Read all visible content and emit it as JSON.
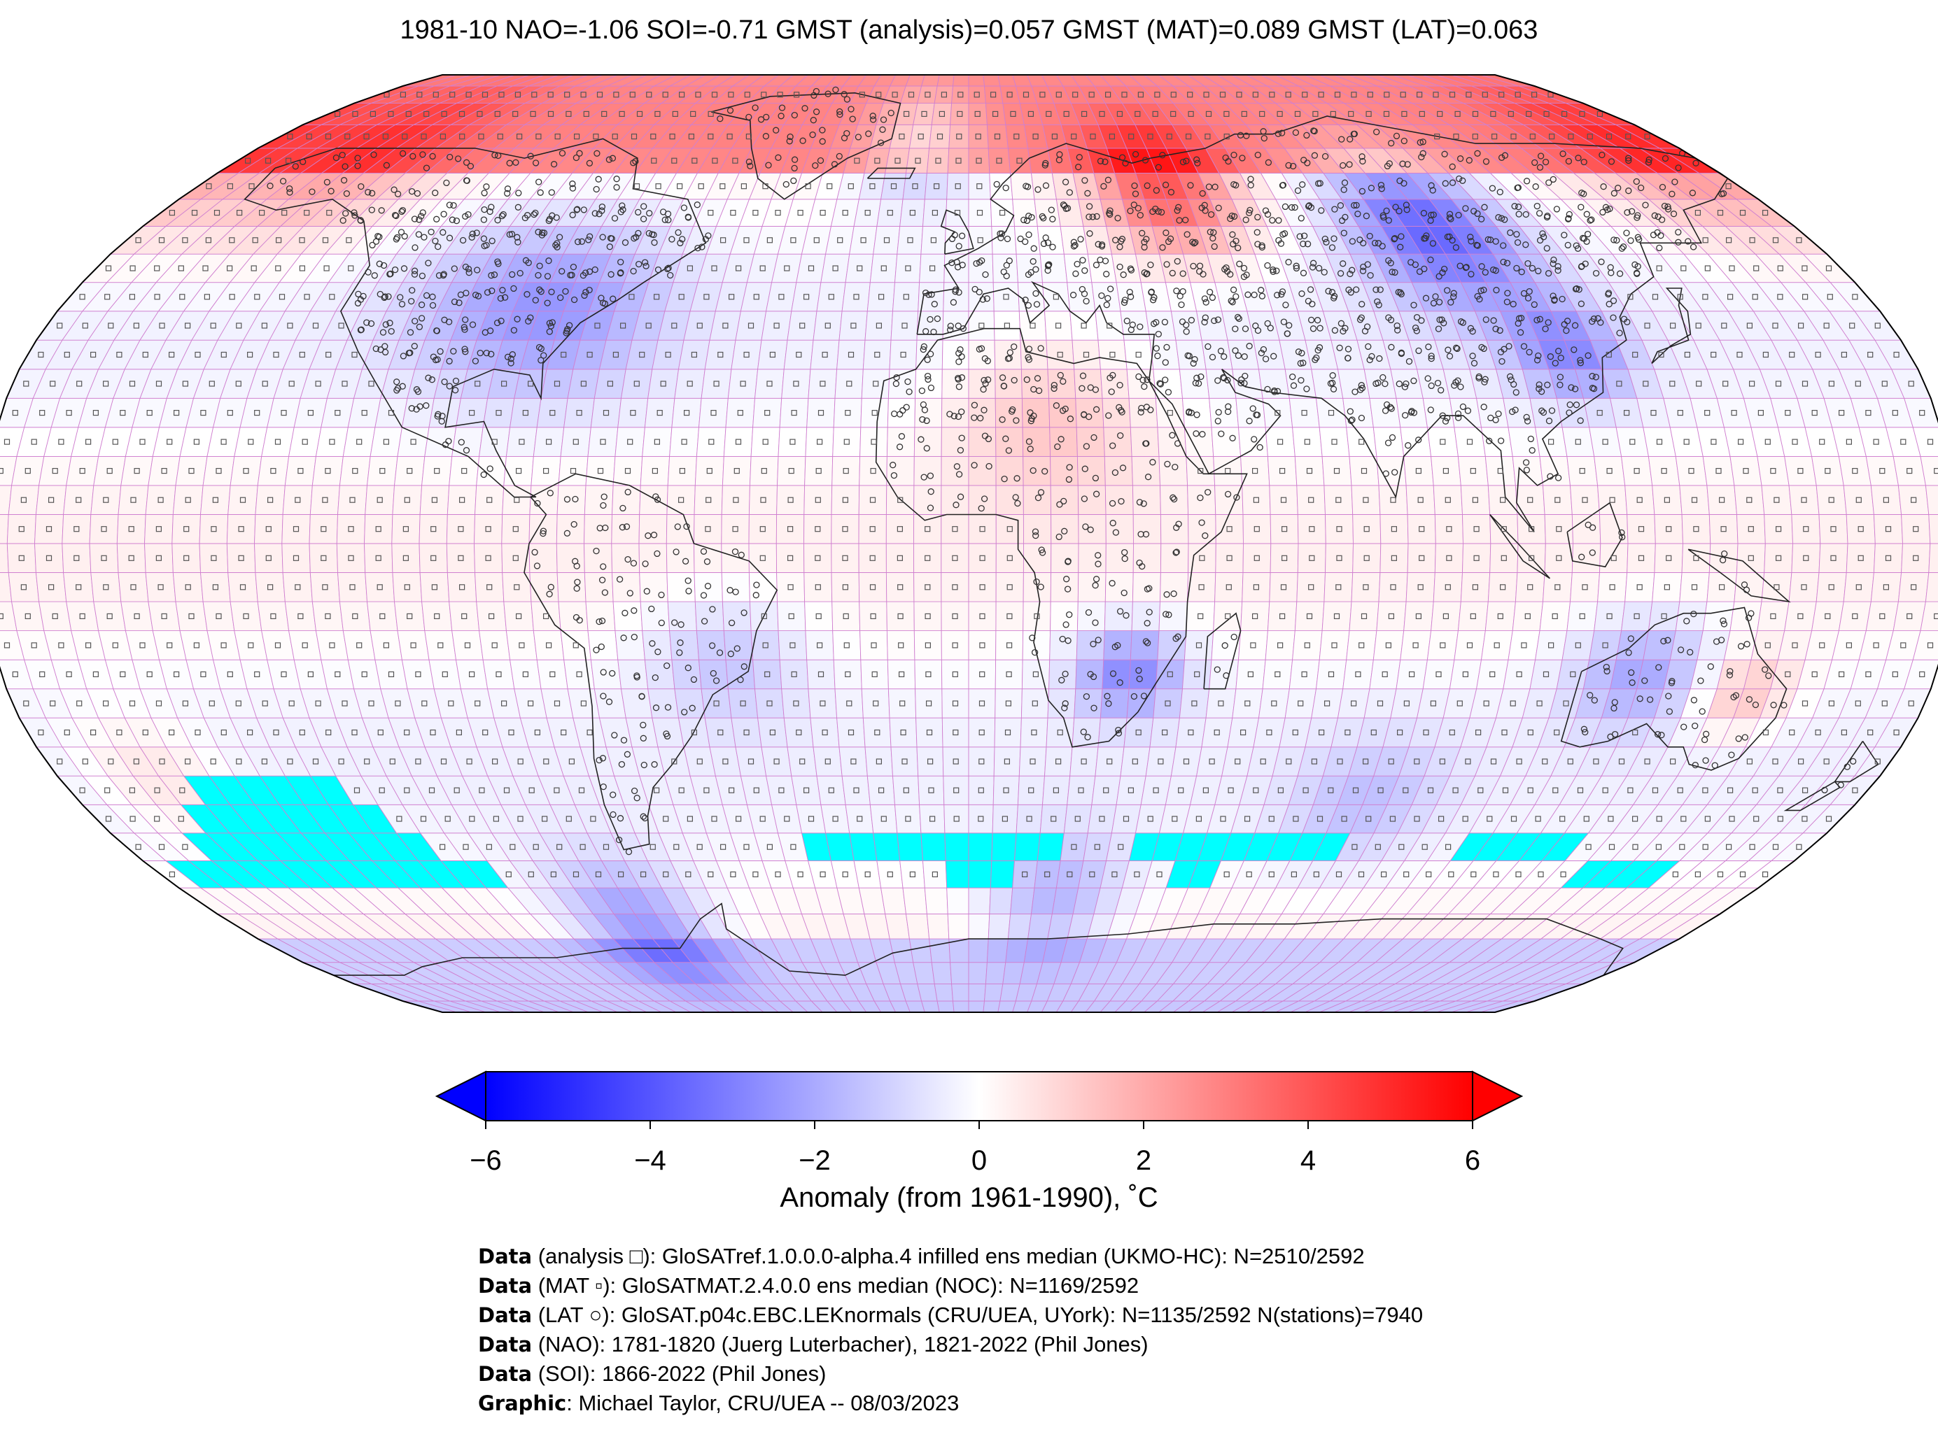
{
  "title": "1981-10 NAO=-1.06 SOI=-0.71 GMST (analysis)=0.057 GMST (MAT)=0.089 GMST (LAT)=0.063",
  "colorbar": {
    "ticks": [
      "−6",
      "−4",
      "−2",
      "0",
      "2",
      "4",
      "6"
    ],
    "tick_values": [
      -6,
      -4,
      -2,
      0,
      2,
      4,
      6
    ],
    "label": "Anomaly (from 1961-1990), ˚C",
    "low_color": "#0000ff",
    "mid_color": "#ffffff",
    "high_color": "#ff0000"
  },
  "map": {
    "projection": "Robinson",
    "grid_line_color": "#d080d0",
    "missing_data_color": "#00ffff",
    "station_marker": "circle",
    "grid_marker": "square"
  },
  "credits": [
    {
      "bold": "Data",
      "text": " (analysis □): GloSATref.1.0.0.0-alpha.4 infilled ens median (UKMO-HC): N=2510/2592"
    },
    {
      "bold": "Data",
      "text": " (MAT ▫): GloSATMAT.2.4.0.0 ens median (NOC): N=1169/2592"
    },
    {
      "bold": "Data",
      "text": " (LAT ○): GloSAT.p04c.EBC.LEKnormals (CRU/UEA, UYork): N=1135/2592 N(stations)=7940"
    },
    {
      "bold": "Data",
      "text": " (NAO): 1781-1820 (Juerg Luterbacher), 1821-2022 (Phil Jones)"
    },
    {
      "bold": "Data",
      "text": " (SOI): 1866-2022 (Phil Jones)"
    },
    {
      "bold": "Graphic",
      "text": ": Michael Taylor, CRU/UEA -- 08/03/2023"
    }
  ]
}
